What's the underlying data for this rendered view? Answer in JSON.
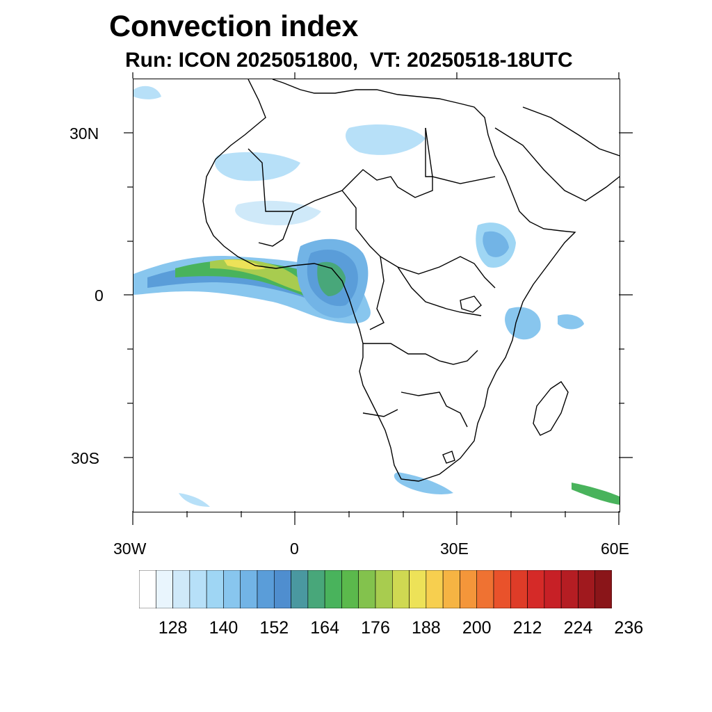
{
  "title": "Convection index",
  "subtitle": "Run: ICON 2025051800,  VT: 20250518-18UTC",
  "axes": {
    "lat_labels": [
      "30N",
      "0",
      "30S"
    ],
    "lon_labels": [
      "30W",
      "0",
      "30E",
      "60E"
    ]
  },
  "colorbar": {
    "colors": [
      "#ffffff",
      "#e9f5fd",
      "#cfe9f9",
      "#b7e0f8",
      "#9fd6f4",
      "#88c6ee",
      "#72b4e6",
      "#5a9dd9",
      "#4f8ecf",
      "#4a98a0",
      "#48a77a",
      "#49b35c",
      "#5bb94c",
      "#83c24d",
      "#a8cc4f",
      "#cfd952",
      "#ede258",
      "#f7cf4f",
      "#f6b443",
      "#f4963a",
      "#ef7232",
      "#e9522b",
      "#de3c28",
      "#d52a28",
      "#c72026",
      "#b51d23",
      "#a0191e",
      "#8a1519"
    ],
    "labels": [
      "128",
      "140",
      "152",
      "164",
      "176",
      "188",
      "200",
      "212",
      "224",
      "236"
    ]
  }
}
